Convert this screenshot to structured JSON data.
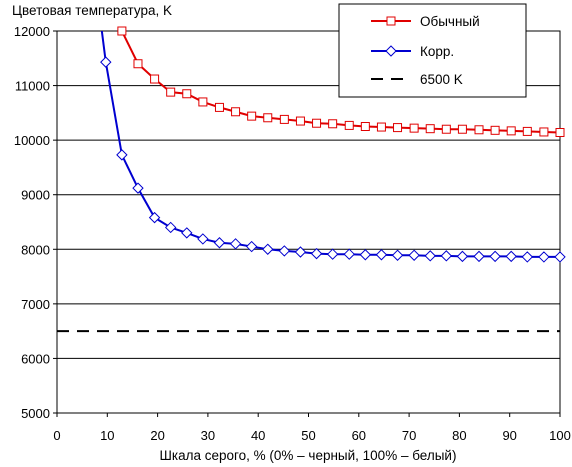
{
  "chart_data": {
    "type": "line",
    "ylabel": "Цветовая температура, K",
    "xlabel": "Шкала серого, % (0% – черный, 100% – белый)",
    "xlim": [
      0,
      100
    ],
    "ylim": [
      5000,
      12000
    ],
    "xticks": [
      0,
      10,
      20,
      30,
      40,
      50,
      60,
      70,
      80,
      90,
      100
    ],
    "yticks": [
      5000,
      6000,
      7000,
      8000,
      9000,
      10000,
      11000,
      12000
    ],
    "grid": "horizontal",
    "legend_position": "top-right",
    "series": [
      {
        "name": "Обычный",
        "color": "#e00000",
        "marker": "square",
        "x": [
          12.9,
          16.1,
          19.4,
          22.6,
          25.8,
          29.0,
          32.3,
          35.5,
          38.7,
          41.9,
          45.2,
          48.4,
          51.6,
          54.8,
          58.1,
          61.3,
          64.5,
          67.7,
          71.0,
          74.2,
          77.4,
          80.6,
          83.9,
          87.1,
          90.3,
          93.5,
          96.8,
          100.0
        ],
        "y": [
          12000,
          11400,
          11120,
          10880,
          10850,
          10700,
          10600,
          10520,
          10440,
          10410,
          10380,
          10350,
          10310,
          10300,
          10270,
          10250,
          10240,
          10230,
          10220,
          10210,
          10200,
          10200,
          10190,
          10180,
          10170,
          10160,
          10150,
          10140
        ],
        "pre_line": {
          "x": [
            12.0
          ],
          "y": [
            12800
          ]
        }
      },
      {
        "name": "Корр.",
        "color": "#0000d0",
        "marker": "diamond",
        "x": [
          9.7,
          12.9,
          16.1,
          19.4,
          22.6,
          25.8,
          29.0,
          32.3,
          35.5,
          38.7,
          41.9,
          45.2,
          48.4,
          51.6,
          54.8,
          58.1,
          61.3,
          64.5,
          67.7,
          71.0,
          74.2,
          77.4,
          80.6,
          83.9,
          87.1,
          90.3,
          93.5,
          96.8,
          100.0
        ],
        "y": [
          11430,
          9730,
          9120,
          8580,
          8400,
          8300,
          8190,
          8120,
          8100,
          8050,
          8000,
          7970,
          7950,
          7920,
          7910,
          7910,
          7900,
          7900,
          7890,
          7890,
          7880,
          7880,
          7870,
          7870,
          7870,
          7870,
          7860,
          7860,
          7860
        ],
        "pre_line": {
          "x": [
            8.5
          ],
          "y": [
            12300
          ]
        }
      },
      {
        "name": "6500 K",
        "color": "#000000",
        "style": "dashed",
        "x": [
          0,
          100
        ],
        "y": [
          6500,
          6500
        ]
      }
    ]
  }
}
